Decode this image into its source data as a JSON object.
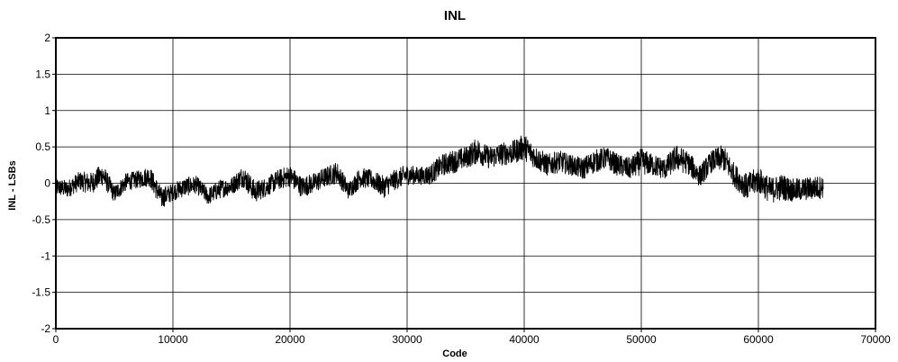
{
  "chart_data": {
    "type": "line",
    "title": "INL",
    "xlabel": "Code",
    "ylabel": "INL - LSBs",
    "xlim": [
      0,
      70000
    ],
    "ylim": [
      -2,
      2
    ],
    "x_ticks": [
      0,
      10000,
      20000,
      30000,
      40000,
      50000,
      60000,
      70000
    ],
    "y_ticks": [
      2,
      1.5,
      1,
      0.5,
      0,
      -0.5,
      -1,
      -1.5,
      -2
    ],
    "x_tick_labels": [
      "0",
      "10000",
      "20000",
      "30000",
      "40000",
      "50000",
      "60000",
      "70000"
    ],
    "y_tick_labels": [
      "2",
      "1.5",
      "1",
      "0.5",
      "0",
      "-0.5",
      "-1",
      "-1.5",
      "-2"
    ],
    "grid": true,
    "legend": "none",
    "line_color": "#000000",
    "series": [
      {
        "x": [
          0,
          1000,
          2000,
          3000,
          4000,
          5000,
          6000,
          7000,
          8000,
          9000,
          10000,
          11000,
          12000,
          13000,
          14000,
          15000,
          16000,
          17000,
          18000,
          19000,
          20000,
          21000,
          22000,
          23000,
          24000,
          25000,
          26000,
          27000,
          28000,
          29000,
          30000,
          31000,
          32000,
          33000,
          34000,
          35000,
          36000,
          37000,
          38000,
          39000,
          40000,
          41000,
          42000,
          43000,
          44000,
          45000,
          46000,
          47000,
          48000,
          49000,
          50000,
          51000,
          52000,
          53000,
          54000,
          55000,
          56000,
          57000,
          58000,
          59000,
          60000,
          61000,
          62000,
          63000,
          64000,
          65535
        ],
        "y": [
          -0.05,
          -0.08,
          0.03,
          0.0,
          0.12,
          -0.15,
          0.02,
          0.05,
          0.1,
          -0.2,
          -0.12,
          -0.05,
          -0.02,
          -0.18,
          -0.08,
          -0.04,
          0.1,
          -0.12,
          -0.05,
          0.05,
          0.1,
          -0.05,
          0.0,
          0.08,
          0.15,
          -0.1,
          0.08,
          0.05,
          -0.05,
          0.05,
          0.12,
          0.1,
          0.12,
          0.25,
          0.3,
          0.35,
          0.45,
          0.35,
          0.4,
          0.42,
          0.5,
          0.35,
          0.25,
          0.3,
          0.25,
          0.2,
          0.3,
          0.35,
          0.25,
          0.2,
          0.3,
          0.25,
          0.2,
          0.35,
          0.28,
          0.1,
          0.3,
          0.35,
          0.1,
          -0.05,
          0.05,
          -0.1,
          -0.05,
          -0.1,
          -0.08,
          -0.05
        ],
        "band": [
          0.12,
          0.12,
          0.13,
          0.15,
          0.15,
          0.12,
          0.12,
          0.12,
          0.14,
          0.15,
          0.12,
          0.13,
          0.12,
          0.12,
          0.13,
          0.12,
          0.15,
          0.15,
          0.13,
          0.14,
          0.15,
          0.14,
          0.14,
          0.14,
          0.15,
          0.12,
          0.14,
          0.13,
          0.15,
          0.14,
          0.14,
          0.12,
          0.14,
          0.15,
          0.16,
          0.15,
          0.18,
          0.15,
          0.16,
          0.16,
          0.18,
          0.16,
          0.15,
          0.15,
          0.14,
          0.15,
          0.16,
          0.15,
          0.15,
          0.15,
          0.18,
          0.15,
          0.15,
          0.18,
          0.16,
          0.15,
          0.15,
          0.18,
          0.16,
          0.18,
          0.18,
          0.18,
          0.18,
          0.16,
          0.16,
          0.16
        ]
      }
    ]
  }
}
